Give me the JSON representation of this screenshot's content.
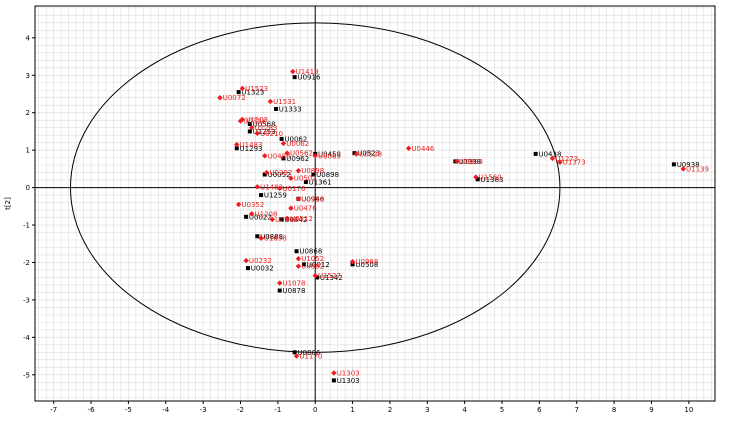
{
  "chart_data": {
    "type": "scatter",
    "title": "",
    "xlabel": "",
    "ylabel": "t[2]",
    "xlim": [
      -7.5,
      10.7
    ],
    "ylim": [
      -5.7,
      4.85
    ],
    "xticks": [
      "-7",
      "-6",
      "-5",
      "-4",
      "-3",
      "-2",
      "-1",
      "0",
      "1",
      "2",
      "3",
      "4",
      "5",
      "6",
      "7",
      "8",
      "9",
      "10"
    ],
    "yticks": [
      "4",
      "3",
      "2",
      "1",
      "0",
      "-1",
      "-2",
      "-3",
      "-4",
      "-5"
    ],
    "grid": true,
    "ellipse": {
      "cx": 0,
      "cy": 0,
      "rx": 6.55,
      "ry": 4.4
    },
    "colors": {
      "black_series": "#000000",
      "red_series": "#ee1c1c",
      "grid": "#dcdcdc",
      "axis": "#000000"
    },
    "series": [
      {
        "marker": "square",
        "color": "black",
        "points": [
          {
            "label": "U0916",
            "x": -0.55,
            "y": 2.95
          },
          {
            "label": "U1323",
            "x": -2.05,
            "y": 2.55
          },
          {
            "label": "U1333",
            "x": -1.05,
            "y": 2.1
          },
          {
            "label": "U0568",
            "x": -1.75,
            "y": 1.7
          },
          {
            "label": "U1253",
            "x": -1.75,
            "y": 1.5
          },
          {
            "label": "U0062",
            "x": -0.9,
            "y": 1.3
          },
          {
            "label": "U1293",
            "x": -2.1,
            "y": 1.05
          },
          {
            "label": "U0458",
            "x": 0.0,
            "y": 0.9
          },
          {
            "label": "U0523",
            "x": 1.05,
            "y": 0.92
          },
          {
            "label": "U0998",
            "x": 3.75,
            "y": 0.7
          },
          {
            "label": "U0438",
            "x": 5.9,
            "y": 0.9
          },
          {
            "label": "U0938",
            "x": 9.6,
            "y": 0.62
          },
          {
            "label": "U1383",
            "x": 4.35,
            "y": 0.22
          },
          {
            "label": "U0962",
            "x": -0.85,
            "y": 0.78
          },
          {
            "label": "U0052",
            "x": -1.35,
            "y": 0.35
          },
          {
            "label": "U0898",
            "x": -0.05,
            "y": 0.35
          },
          {
            "label": "U1361",
            "x": -0.25,
            "y": 0.15
          },
          {
            "label": "U1259",
            "x": -1.45,
            "y": -0.2
          },
          {
            "label": "U0946",
            "x": -0.45,
            "y": -0.3
          },
          {
            "label": "U0022",
            "x": -1.85,
            "y": -0.78
          },
          {
            "label": "U0442",
            "x": -0.9,
            "y": -0.85
          },
          {
            "label": "U0888",
            "x": -1.55,
            "y": -1.3
          },
          {
            "label": "U0868",
            "x": -0.5,
            "y": -1.7
          },
          {
            "label": "U0012",
            "x": -0.3,
            "y": -2.05
          },
          {
            "label": "U0508",
            "x": 1.0,
            "y": -2.05
          },
          {
            "label": "U0032",
            "x": -1.8,
            "y": -2.15
          },
          {
            "label": "U1342",
            "x": 0.05,
            "y": -2.4
          },
          {
            "label": "U0878",
            "x": -0.95,
            "y": -2.75
          },
          {
            "label": "U0806",
            "x": -0.55,
            "y": -4.4
          },
          {
            "label": "U1303",
            "x": 0.5,
            "y": -5.15
          }
        ]
      },
      {
        "marker": "diamond",
        "color": "red",
        "points": [
          {
            "label": "U1419",
            "x": -0.6,
            "y": 3.1
          },
          {
            "label": "U1523",
            "x": -1.95,
            "y": 2.65
          },
          {
            "label": "U0072",
            "x": -2.55,
            "y": 2.4
          },
          {
            "label": "U1531",
            "x": -1.2,
            "y": 2.3
          },
          {
            "label": "U0328",
            "x": -2.0,
            "y": 1.78
          },
          {
            "label": "U1503",
            "x": -1.95,
            "y": 1.82
          },
          {
            "label": "U1283",
            "x": -1.7,
            "y": 1.6
          },
          {
            "label": "U0210",
            "x": -1.55,
            "y": 1.45
          },
          {
            "label": "U1483",
            "x": -2.1,
            "y": 1.15
          },
          {
            "label": "U0062",
            "x": -0.85,
            "y": 1.18
          },
          {
            "label": "U0065",
            "x": 0.0,
            "y": 0.85
          },
          {
            "label": "U0528",
            "x": 1.1,
            "y": 0.9
          },
          {
            "label": "U0446",
            "x": 2.5,
            "y": 1.05
          },
          {
            "label": "U0998",
            "x": 3.8,
            "y": 0.7
          },
          {
            "label": "U0488",
            "x": -1.35,
            "y": 0.85
          },
          {
            "label": "U0562",
            "x": -0.75,
            "y": 0.92
          },
          {
            "label": "U1560",
            "x": 4.3,
            "y": 0.28
          },
          {
            "label": "U1273",
            "x": 6.35,
            "y": 0.78
          },
          {
            "label": "U1373",
            "x": 6.55,
            "y": 0.68
          },
          {
            "label": "U1139",
            "x": 9.85,
            "y": 0.5
          },
          {
            "label": "U0292",
            "x": -1.3,
            "y": 0.4
          },
          {
            "label": "U0898",
            "x": -0.45,
            "y": 0.45
          },
          {
            "label": "U0502",
            "x": -0.65,
            "y": 0.25
          },
          {
            "label": "U1483",
            "x": -1.55,
            "y": 0.02
          },
          {
            "label": "U0176",
            "x": -0.95,
            "y": -0.02
          },
          {
            "label": "U0958",
            "x": -0.45,
            "y": -0.3
          },
          {
            "label": "U0352",
            "x": -2.05,
            "y": -0.45
          },
          {
            "label": "U0476",
            "x": -0.65,
            "y": -0.55
          },
          {
            "label": "U1208",
            "x": -1.7,
            "y": -0.7
          },
          {
            "label": "U0442",
            "x": -1.15,
            "y": -0.85
          },
          {
            "label": "U0512",
            "x": -0.75,
            "y": -0.82
          },
          {
            "label": "U1638",
            "x": -1.45,
            "y": -1.35
          },
          {
            "label": "U1052",
            "x": -0.45,
            "y": -1.9
          },
          {
            "label": "U0232",
            "x": -1.85,
            "y": -1.95
          },
          {
            "label": "U0882",
            "x": -0.45,
            "y": -2.1
          },
          {
            "label": "U0988",
            "x": 1.0,
            "y": -1.98
          },
          {
            "label": "U1527",
            "x": 0.0,
            "y": -2.35
          },
          {
            "label": "U1078",
            "x": -0.95,
            "y": -2.55
          },
          {
            "label": "U1170",
            "x": -0.5,
            "y": -4.5
          },
          {
            "label": "U1303",
            "x": 0.5,
            "y": -4.95
          }
        ]
      }
    ]
  }
}
